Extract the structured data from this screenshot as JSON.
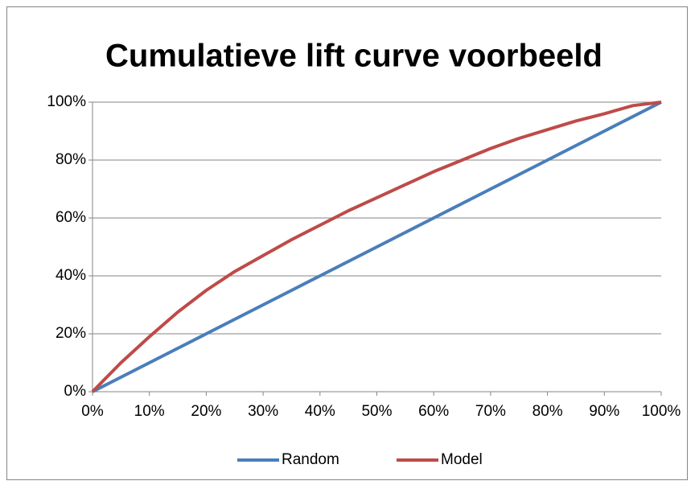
{
  "chart_data": {
    "type": "line",
    "title": "Cumulatieve lift curve voorbeeld",
    "x": [
      0,
      5,
      10,
      15,
      20,
      25,
      30,
      35,
      40,
      45,
      50,
      55,
      60,
      65,
      70,
      75,
      80,
      85,
      90,
      95,
      100
    ],
    "series": [
      {
        "name": "Random",
        "color": "#4a7ebb",
        "values": [
          0,
          5,
          10,
          15,
          20,
          25,
          30,
          35,
          40,
          45,
          50,
          55,
          60,
          65,
          70,
          75,
          80,
          85,
          90,
          95,
          100
        ]
      },
      {
        "name": "Model",
        "color": "#be4b48",
        "values": [
          0,
          10,
          19,
          27.5,
          35,
          41.5,
          47,
          52.5,
          57.5,
          62.5,
          67,
          71.5,
          76,
          80,
          84,
          87.5,
          90.5,
          93.5,
          96,
          98.8,
          100
        ]
      }
    ],
    "xlim": [
      0,
      100
    ],
    "xticks": [
      {
        "value": 0,
        "label": "0%"
      },
      {
        "value": 10,
        "label": "10%"
      },
      {
        "value": 20,
        "label": "20%"
      },
      {
        "value": 30,
        "label": "30%"
      },
      {
        "value": 40,
        "label": "40%"
      },
      {
        "value": 50,
        "label": "50%"
      },
      {
        "value": 60,
        "label": "60%"
      },
      {
        "value": 70,
        "label": "70%"
      },
      {
        "value": 80,
        "label": "80%"
      },
      {
        "value": 90,
        "label": "90%"
      },
      {
        "value": 100,
        "label": "100%"
      }
    ],
    "ylim": [
      0,
      100
    ],
    "yticks": [
      {
        "value": 0,
        "label": "0%"
      },
      {
        "value": 20,
        "label": "20%"
      },
      {
        "value": 40,
        "label": "40%"
      },
      {
        "value": 60,
        "label": "60%"
      },
      {
        "value": 80,
        "label": "80%"
      },
      {
        "value": 100,
        "label": "100%"
      }
    ],
    "grid": true,
    "legend": "bottom"
  }
}
